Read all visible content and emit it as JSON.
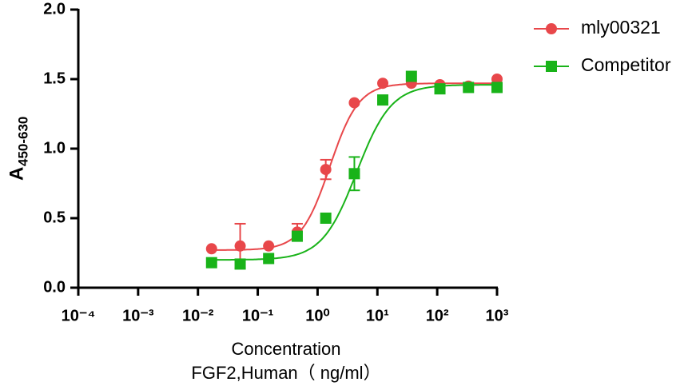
{
  "chart_data": {
    "type": "scatter",
    "log_x": true,
    "x_label": [
      "Concentration",
      "FGF2,Human（ ng/ml）"
    ],
    "y_label": {
      "text": "A",
      "subscript": "450-630"
    },
    "x": [
      0.0169,
      0.0508,
      0.152,
      0.457,
      1.37,
      4.12,
      12.3,
      37,
      111,
      333,
      1000
    ],
    "series": [
      {
        "name": "mly00321",
        "color": "#e8474a",
        "marker": "circle",
        "values": [
          0.28,
          0.3,
          0.3,
          0.4,
          0.85,
          1.33,
          1.47,
          1.47,
          1.46,
          1.45,
          1.5
        ],
        "errors": [
          null,
          0.16,
          null,
          0.06,
          0.07,
          null,
          null,
          null,
          null,
          null,
          null
        ],
        "curve": {
          "bottom": 0.27,
          "top": 1.47,
          "ec50": 1.6,
          "hill": 1.8
        }
      },
      {
        "name": "Competitor",
        "color": "#19b319",
        "marker": "square",
        "values": [
          0.18,
          0.17,
          0.21,
          0.37,
          0.5,
          0.82,
          1.35,
          1.52,
          1.43,
          1.44,
          1.44
        ],
        "errors": [
          null,
          null,
          null,
          null,
          null,
          0.12,
          null,
          null,
          null,
          null,
          null
        ],
        "curve": {
          "bottom": 0.2,
          "top": 1.46,
          "ec50": 4.5,
          "hill": 1.5
        }
      }
    ],
    "xlim": [
      0.0001,
      1000
    ],
    "xticks": [
      {
        "value": 0.0001,
        "label": "10⁻⁴"
      },
      {
        "value": 0.001,
        "label": "10⁻³"
      },
      {
        "value": 0.01,
        "label": "10⁻²"
      },
      {
        "value": 0.1,
        "label": "10⁻¹"
      },
      {
        "value": 1,
        "label": "10⁰"
      },
      {
        "value": 10,
        "label": "10¹"
      },
      {
        "value": 100,
        "label": "10²"
      },
      {
        "value": 1000,
        "label": "10³"
      }
    ],
    "ylim": [
      0,
      2
    ],
    "yticks": [
      {
        "value": 0,
        "label": "0.0"
      },
      {
        "value": 0.5,
        "label": "0.5"
      },
      {
        "value": 1,
        "label": "1.0"
      },
      {
        "value": 1.5,
        "label": "1.5"
      },
      {
        "value": 2,
        "label": "2.0"
      }
    ],
    "legend": "top-right"
  }
}
